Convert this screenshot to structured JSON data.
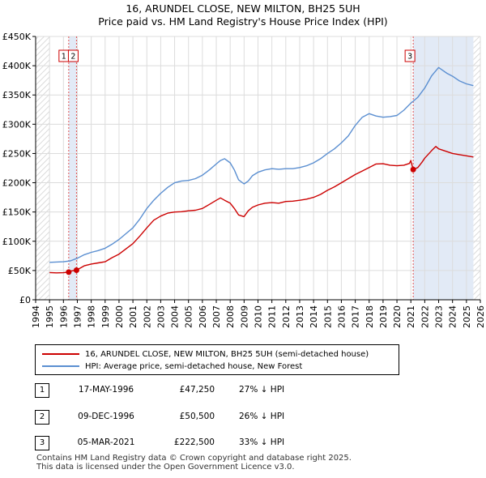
{
  "title_line1": "16, ARUNDEL CLOSE, NEW MILTON, BH25 5UH",
  "title_line2": "Price paid vs. HM Land Registry's House Price Index (HPI)",
  "chart_data": {
    "type": "line",
    "xlim": [
      1994,
      2026
    ],
    "ylim": [
      0,
      450000
    ],
    "y_ticks": [
      0,
      50000,
      100000,
      150000,
      200000,
      250000,
      300000,
      350000,
      400000,
      450000
    ],
    "y_tick_labels": [
      "£0",
      "£50K",
      "£100K",
      "£150K",
      "£200K",
      "£250K",
      "£300K",
      "£350K",
      "£400K",
      "£450K"
    ],
    "x_ticks": [
      1994,
      1995,
      1996,
      1997,
      1998,
      1999,
      2000,
      2001,
      2002,
      2003,
      2004,
      2005,
      2006,
      2007,
      2008,
      2009,
      2010,
      2011,
      2012,
      2013,
      2014,
      2015,
      2016,
      2017,
      2018,
      2019,
      2020,
      2021,
      2022,
      2023,
      2024,
      2025,
      2026
    ],
    "x_tick_labels": [
      "1994",
      "1995",
      "1996",
      "1997",
      "1998",
      "1999",
      "2000",
      "2001",
      "2002",
      "2003",
      "2004",
      "2005",
      "2006",
      "2007",
      "2008",
      "2009",
      "2010",
      "2011",
      "2012",
      "2013",
      "2014",
      "2015",
      "2016",
      "2017",
      "2018",
      "2019",
      "2020",
      "2021",
      "2022",
      "2023",
      "2024",
      "2025",
      "2026"
    ],
    "shaded_regions": [
      [
        1996.38,
        1996.94
      ],
      [
        2021.17,
        2025.5
      ]
    ],
    "hatched_ranges": [
      [
        1994,
        1995.0
      ],
      [
        2025.5,
        2026
      ]
    ],
    "grid": true,
    "series": [
      {
        "name": "16, ARUNDEL CLOSE, NEW MILTON, BH25 5UH (semi-detached house)",
        "color": "#cc0000",
        "x": [
          1995.0,
          1995.5,
          1996.0,
          1996.38,
          1996.6,
          1996.94,
          1997.5,
          1998.0,
          1998.5,
          1999.0,
          1999.5,
          2000.0,
          2000.5,
          2001.0,
          2001.5,
          2002.0,
          2002.5,
          2003.0,
          2003.5,
          2004.0,
          2004.5,
          2005.0,
          2005.5,
          2006.0,
          2006.5,
          2007.0,
          2007.3,
          2007.6,
          2008.0,
          2008.3,
          2008.6,
          2009.0,
          2009.3,
          2009.6,
          2010.0,
          2010.5,
          2011.0,
          2011.5,
          2012.0,
          2012.5,
          2013.0,
          2013.5,
          2014.0,
          2014.5,
          2015.0,
          2015.5,
          2016.0,
          2016.5,
          2017.0,
          2017.5,
          2018.0,
          2018.5,
          2019.0,
          2019.5,
          2020.0,
          2020.5,
          2020.9,
          2021.0,
          2021.17,
          2021.5,
          2021.8,
          2022.0,
          2022.5,
          2022.8,
          2023.0,
          2023.5,
          2024.0,
          2024.5,
          2025.0,
          2025.5
        ],
        "y": [
          46500,
          46000,
          46200,
          47250,
          49500,
          50500,
          58000,
          61000,
          63000,
          65000,
          72000,
          78000,
          87000,
          96000,
          109000,
          123000,
          136000,
          143000,
          148000,
          150000,
          150500,
          152000,
          153000,
          156000,
          163000,
          170000,
          174000,
          170000,
          165000,
          156000,
          145000,
          142000,
          152000,
          158000,
          162000,
          165000,
          166000,
          165000,
          168000,
          168500,
          170000,
          172000,
          175000,
          180000,
          187000,
          193000,
          200000,
          207000,
          214000,
          220000,
          226000,
          232000,
          232500,
          230000,
          229000,
          230000,
          233000,
          238000,
          222500,
          226000,
          235000,
          242000,
          255000,
          262000,
          258000,
          254000,
          250000,
          248000,
          246000,
          244000
        ]
      },
      {
        "name": "HPI: Average price, semi-detached house, New Forest",
        "color": "#5b8fd1",
        "x": [
          1995.0,
          1995.5,
          1996.0,
          1996.5,
          1997.0,
          1997.5,
          1998.0,
          1998.5,
          1999.0,
          1999.5,
          2000.0,
          2000.5,
          2001.0,
          2001.5,
          2002.0,
          2002.5,
          2003.0,
          2003.5,
          2004.0,
          2004.5,
          2005.0,
          2005.5,
          2006.0,
          2006.5,
          2007.0,
          2007.3,
          2007.6,
          2008.0,
          2008.3,
          2008.6,
          2009.0,
          2009.3,
          2009.6,
          2010.0,
          2010.5,
          2011.0,
          2011.5,
          2012.0,
          2012.5,
          2013.0,
          2013.5,
          2014.0,
          2014.5,
          2015.0,
          2015.5,
          2016.0,
          2016.5,
          2017.0,
          2017.5,
          2018.0,
          2018.5,
          2019.0,
          2019.5,
          2020.0,
          2020.5,
          2021.0,
          2021.5,
          2022.0,
          2022.5,
          2023.0,
          2023.3,
          2023.6,
          2024.0,
          2024.5,
          2025.0,
          2025.5
        ],
        "y": [
          64000,
          64500,
          65000,
          66500,
          71000,
          77000,
          81000,
          84000,
          88000,
          95000,
          103000,
          113000,
          123000,
          138000,
          156000,
          170000,
          182000,
          192000,
          200000,
          203000,
          204000,
          207000,
          213000,
          222000,
          232000,
          238000,
          241000,
          234000,
          222000,
          205000,
          198000,
          203000,
          212000,
          218000,
          222000,
          224000,
          223000,
          224000,
          224000,
          226000,
          229000,
          234000,
          241000,
          250000,
          258000,
          268000,
          280000,
          298000,
          312000,
          318000,
          314000,
          312000,
          313000,
          315000,
          324000,
          336000,
          346000,
          362000,
          383000,
          397000,
          392000,
          387000,
          382000,
          374000,
          369000,
          366000
        ]
      }
    ],
    "transactions": [
      {
        "label": "1",
        "x": 1996.38,
        "y": 47250
      },
      {
        "label": "2",
        "x": 1996.94,
        "y": 50500
      },
      {
        "label": "3",
        "x": 2021.17,
        "y": 222500
      }
    ]
  },
  "legend": {
    "series1": "16, ARUNDEL CLOSE, NEW MILTON, BH25 5UH (semi-detached house)",
    "series2": "HPI: Average price, semi-detached house, New Forest"
  },
  "table": {
    "rows": [
      {
        "num": "1",
        "date": "17-MAY-1996",
        "price": "£47,250",
        "hpi": "27% ↓ HPI"
      },
      {
        "num": "2",
        "date": "09-DEC-1996",
        "price": "£50,500",
        "hpi": "26% ↓ HPI"
      },
      {
        "num": "3",
        "date": "05-MAR-2021",
        "price": "£222,500",
        "hpi": "33% ↓ HPI"
      }
    ]
  },
  "footer": {
    "line1": "Contains HM Land Registry data © Crown copyright and database right 2025.",
    "line2": "This data is licensed under the Open Government Licence v3.0."
  }
}
